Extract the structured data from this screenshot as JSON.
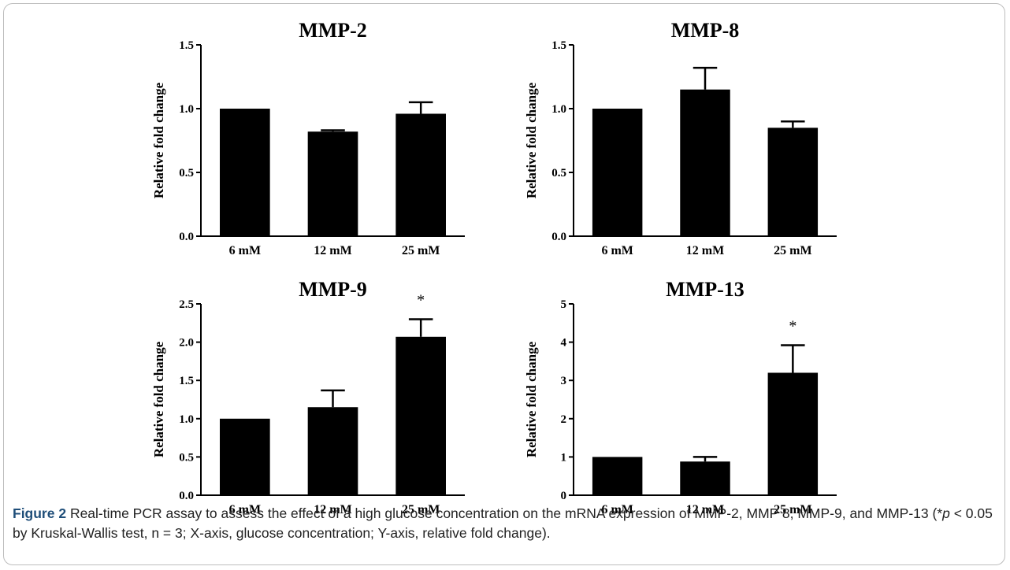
{
  "chart_data": [
    {
      "type": "bar",
      "title": "MMP-2",
      "ylabel": "Relative fold change",
      "categories": [
        "6 mM",
        "12 mM",
        "25 mM"
      ],
      "values": [
        1.0,
        0.82,
        0.96
      ],
      "errors": [
        0.0,
        0.01,
        0.09
      ],
      "significance": [
        "",
        "",
        ""
      ],
      "ylim": [
        0,
        1.5
      ],
      "yticks": [
        "0.0",
        "0.5",
        "1.0",
        "1.5"
      ],
      "bar_color": "#000000"
    },
    {
      "type": "bar",
      "title": "MMP-8",
      "ylabel": "Relative fold change",
      "categories": [
        "6 mM",
        "12 mM",
        "25 mM"
      ],
      "values": [
        1.0,
        1.15,
        0.85
      ],
      "errors": [
        0.0,
        0.17,
        0.05
      ],
      "significance": [
        "",
        "",
        ""
      ],
      "ylim": [
        0,
        1.5
      ],
      "yticks": [
        "0.0",
        "0.5",
        "1.0",
        "1.5"
      ],
      "bar_color": "#000000"
    },
    {
      "type": "bar",
      "title": "MMP-9",
      "ylabel": "Relative fold change",
      "categories": [
        "6 mM",
        "12 mM",
        "25 mM"
      ],
      "values": [
        1.0,
        1.15,
        2.07
      ],
      "errors": [
        0.0,
        0.22,
        0.23
      ],
      "significance": [
        "",
        "",
        "*"
      ],
      "ylim": [
        0,
        2.5
      ],
      "yticks": [
        "0.0",
        "0.5",
        "1.0",
        "1.5",
        "2.0",
        "2.5"
      ],
      "bar_color": "#000000"
    },
    {
      "type": "bar",
      "title": "MMP-13",
      "ylabel": "Relative fold change",
      "categories": [
        "6 mM",
        "12 mM",
        "25 mM"
      ],
      "values": [
        1.0,
        0.88,
        3.2
      ],
      "errors": [
        0.0,
        0.12,
        0.72
      ],
      "significance": [
        "",
        "",
        "*"
      ],
      "ylim": [
        0,
        5
      ],
      "yticks": [
        "0",
        "1",
        "2",
        "3",
        "4",
        "5"
      ],
      "bar_color": "#000000"
    }
  ],
  "caption": {
    "label": "Figure 2",
    "text_1": " Real-time PCR assay to assess the effect of a high glucose concentration on the mRNA expression of MMP-2, MMP 8, MMP-9, and MMP-13 (*",
    "p_symbol": "p",
    "text_2": " < 0.05 by Kruskal-Wallis test, n = 3; X-axis, glucose concentration; Y-axis, relative fold change)."
  }
}
